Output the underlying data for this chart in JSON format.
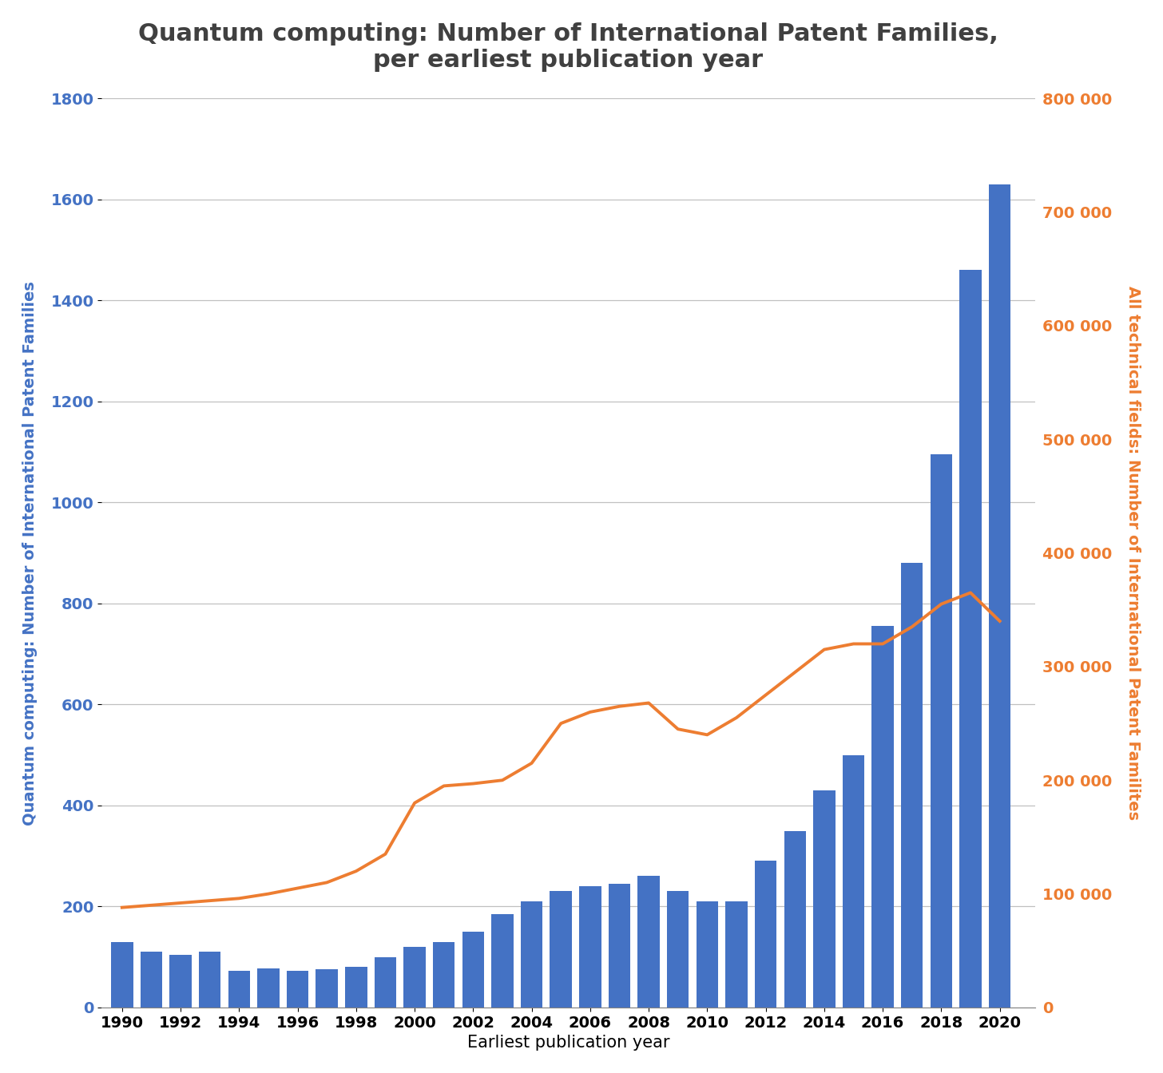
{
  "years": [
    1990,
    1991,
    1992,
    1993,
    1994,
    1995,
    1996,
    1997,
    1998,
    1999,
    2000,
    2001,
    2002,
    2003,
    2004,
    2005,
    2006,
    2007,
    2008,
    2009,
    2010,
    2011,
    2012,
    2013,
    2014,
    2015,
    2016,
    2017,
    2018,
    2019,
    2020
  ],
  "bar_values": [
    130,
    110,
    105,
    110,
    72,
    78,
    72,
    75,
    80,
    100,
    120,
    130,
    150,
    185,
    210,
    230,
    240,
    245,
    260,
    230,
    210,
    210,
    290,
    350,
    430,
    500,
    755,
    880,
    1095,
    1460,
    1630
  ],
  "line_values": [
    88000,
    90000,
    92000,
    94000,
    96000,
    100000,
    105000,
    110000,
    120000,
    135000,
    180000,
    195000,
    197000,
    200000,
    215000,
    250000,
    260000,
    265000,
    268000,
    245000,
    240000,
    255000,
    275000,
    295000,
    315000,
    320000,
    320000,
    335000,
    355000,
    365000,
    340000
  ],
  "bar_color": "#4472C4",
  "line_color": "#ED7D31",
  "title_line1": "Quantum computing: Number of International Patent Families,",
  "title_line2": "per earliest publication year",
  "xlabel": "Earliest publication year",
  "ylabel_left": "Quantum computing: Number of International Patent Families",
  "ylabel_right": "All technical fields: Number of International Patent Familites",
  "ylim_left": [
    0,
    1800
  ],
  "ylim_right": [
    0,
    800000
  ],
  "yticks_left": [
    0,
    200,
    400,
    600,
    800,
    1000,
    1200,
    1400,
    1600,
    1800
  ],
  "yticks_right": [
    0,
    100000,
    200000,
    300000,
    400000,
    500000,
    600000,
    700000,
    800000
  ],
  "ytick_labels_right": [
    "0",
    "100 000",
    "200 000",
    "300 000",
    "400 000",
    "500 000",
    "600 000",
    "700 000",
    "800 000"
  ],
  "background_color": "#FFFFFF",
  "title_fontsize": 22,
  "label_fontsize": 14,
  "tick_fontsize": 14,
  "title_color": "#404040",
  "bar_label_color": "#2E5FA3",
  "line_label_color": "#C55A11"
}
